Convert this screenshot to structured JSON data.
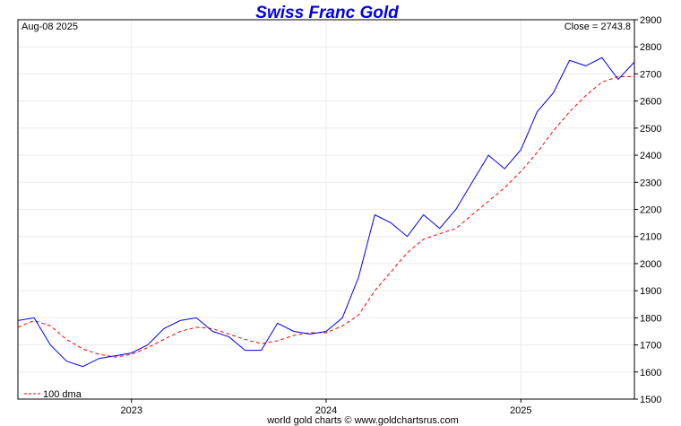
{
  "chart_data": {
    "type": "line",
    "title": "Swiss Franc Gold",
    "date_label": "Aug-08  2025",
    "close_label": "Close = 2743.8",
    "credit": "world gold charts © www.goldchartsrus.com",
    "legend": "100 dma",
    "legend_position": "bottom-left",
    "xlabel": "",
    "ylabel": "",
    "ylim": [
      1500,
      2900
    ],
    "y_ticks": [
      1500,
      1600,
      1700,
      1800,
      1900,
      2000,
      2100,
      2200,
      2300,
      2400,
      2500,
      2600,
      2700,
      2800,
      2900
    ],
    "x_tick_labels": [
      "2023",
      "2024",
      "2025"
    ],
    "x_range": [
      "2022-06",
      "2025-08"
    ],
    "grid": true,
    "colors": {
      "price": "#0000ee",
      "dma": "#ff0000",
      "title": "#0000ee"
    },
    "series": [
      {
        "name": "",
        "x": [
          "2022-06",
          "2022-07",
          "2022-08",
          "2022-09",
          "2022-10",
          "2022-11",
          "2022-12",
          "2023-01",
          "2023-02",
          "2023-03",
          "2023-04",
          "2023-05",
          "2023-06",
          "2023-07",
          "2023-08",
          "2023-09",
          "2023-10",
          "2023-11",
          "2023-12",
          "2024-01",
          "2024-02",
          "2024-03",
          "2024-04",
          "2024-05",
          "2024-06",
          "2024-07",
          "2024-08",
          "2024-09",
          "2024-10",
          "2024-11",
          "2024-12",
          "2025-01",
          "2025-02",
          "2025-03",
          "2025-04",
          "2025-05",
          "2025-06",
          "2025-07",
          "2025-08"
        ],
        "values": [
          1790,
          1800,
          1700,
          1640,
          1620,
          1650,
          1660,
          1670,
          1700,
          1760,
          1790,
          1800,
          1750,
          1730,
          1680,
          1680,
          1780,
          1750,
          1740,
          1750,
          1800,
          1950,
          2180,
          2150,
          2100,
          2180,
          2130,
          2200,
          2300,
          2400,
          2350,
          2420,
          2560,
          2630,
          2750,
          2730,
          2760,
          2680,
          2744
        ]
      },
      {
        "name": "100 dma",
        "x": [
          "2022-06",
          "2022-07",
          "2022-08",
          "2022-09",
          "2022-10",
          "2022-11",
          "2022-12",
          "2023-01",
          "2023-02",
          "2023-03",
          "2023-04",
          "2023-05",
          "2023-06",
          "2023-07",
          "2023-08",
          "2023-09",
          "2023-10",
          "2023-11",
          "2023-12",
          "2024-01",
          "2024-02",
          "2024-03",
          "2024-04",
          "2024-05",
          "2024-06",
          "2024-07",
          "2024-08",
          "2024-09",
          "2024-10",
          "2024-11",
          "2024-12",
          "2025-01",
          "2025-02",
          "2025-03",
          "2025-04",
          "2025-05",
          "2025-06",
          "2025-07",
          "2025-08"
        ],
        "values": [
          1765,
          1790,
          1770,
          1720,
          1685,
          1665,
          1655,
          1665,
          1690,
          1720,
          1750,
          1765,
          1760,
          1740,
          1720,
          1705,
          1715,
          1735,
          1745,
          1745,
          1770,
          1810,
          1900,
          1970,
          2040,
          2090,
          2110,
          2130,
          2180,
          2230,
          2280,
          2340,
          2410,
          2490,
          2560,
          2620,
          2670,
          2690,
          2690
        ]
      }
    ]
  }
}
